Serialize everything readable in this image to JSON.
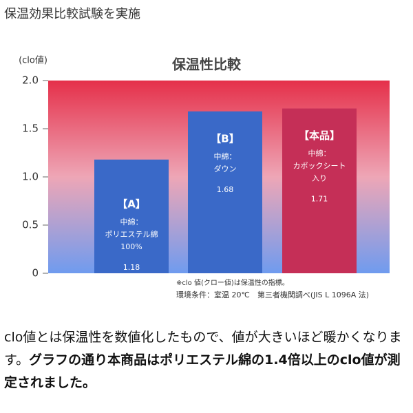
{
  "header": {
    "title": "保温効果比較試験を実施"
  },
  "chart_data": {
    "type": "bar",
    "title": "保温性比較",
    "y_label": "(clo値)",
    "categories": [
      "【A】",
      "【B】",
      "【本品】"
    ],
    "bar_labels": [
      [
        "中綿：",
        "ポリエステル綿",
        "100%"
      ],
      [
        "中綿：",
        "ダウン"
      ],
      [
        "中綿：",
        "カポックシート",
        "入り"
      ]
    ],
    "values": [
      1.18,
      1.68,
      1.71
    ],
    "colors": [
      "#3a69c8",
      "#3a69c8",
      "#c52f57"
    ],
    "ylim": [
      0,
      2
    ],
    "yticks": [
      0,
      0.5,
      {
        "value": 1,
        "label": "1.0"
      },
      1.5,
      {
        "value": 2,
        "label": "2.0"
      }
    ],
    "grid": false,
    "notes": [
      "※clo 値(クロー値)は保温性の指標。",
      "環境条件：室温 20℃　第三者機関調べ(JIS L 1096A 法)"
    ]
  },
  "description": {
    "text": "clo値とは保温性を数値化したもので、値が大きいほど暖かくなります。",
    "bold": "グラフの通り本商品はポリエステル綿の1.4倍以上のclo値が測定されました。"
  }
}
